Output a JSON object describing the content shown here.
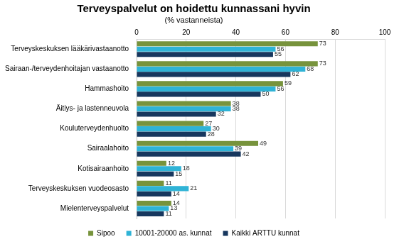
{
  "chart_data": {
    "type": "bar",
    "orientation": "horizontal",
    "title": "Terveyspalvelut on hoidettu kunnassani hyvin",
    "subtitle": "(% vastanneista)",
    "categories": [
      "Terveyskeskuksen lääkärivastaanotto",
      "Sairaan-/terveydenhoitajan vastaanotto",
      "Hammashoito",
      "Äitiys- ja lastenneuvola",
      "Kouluterveydenhuolto",
      "Sairaalahoito",
      "Kotisairaanhoito",
      "Terveyskeskuksen vuodeosasto",
      "Mielenterveyspalvelut"
    ],
    "series": [
      {
        "name": "Sipoo",
        "color": "#77933c",
        "values": [
          73,
          73,
          59,
          38,
          27,
          49,
          12,
          11,
          14
        ]
      },
      {
        "name": "10001-20000 as. kunnat",
        "color": "#2fb3d6",
        "values": [
          56,
          68,
          56,
          38,
          30,
          39,
          18,
          21,
          13
        ]
      },
      {
        "name": "Kaikki ARTTU kunnat",
        "color": "#17375e",
        "values": [
          55,
          62,
          50,
          32,
          28,
          42,
          15,
          14,
          11
        ]
      }
    ],
    "xlim": [
      0,
      100
    ],
    "xticks": [
      0,
      20,
      40,
      60,
      80,
      100
    ],
    "grid": true,
    "legend": "bottom",
    "data_labels": true
  }
}
